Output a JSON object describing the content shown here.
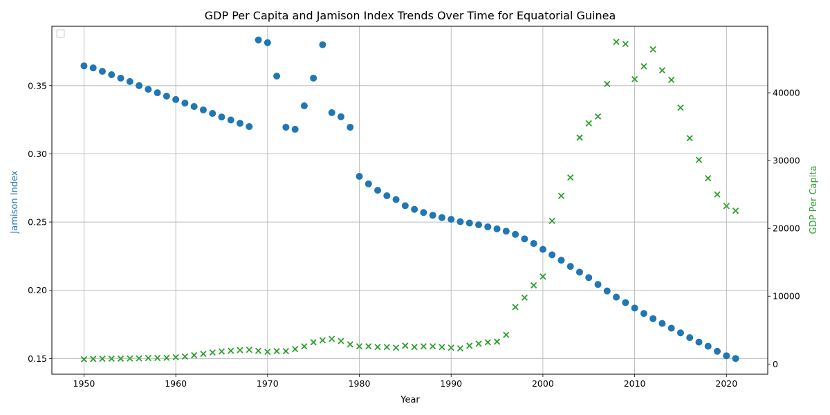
{
  "chart_data": {
    "type": "scatter",
    "title": "GDP Per Capita and Jamison Index Trends Over Time for Equatorial Guinea",
    "xlabel": "Year",
    "ylabel_left": "Jamison Index",
    "ylabel_right": "GDP Per Capita",
    "xlim": [
      1946.5,
      2024.5
    ],
    "ylim_left": [
      0.1385,
      0.3935
    ],
    "ylim_right": [
      -1500,
      49800
    ],
    "x_ticks": [
      1950,
      1960,
      1970,
      1980,
      1990,
      2000,
      2010,
      2020
    ],
    "x_tick_labels": [
      "1950",
      "1960",
      "1970",
      "1980",
      "1990",
      "2000",
      "2010",
      "2020"
    ],
    "y_ticks_left": [
      0.15,
      0.2,
      0.25,
      0.3,
      0.35
    ],
    "y_tick_labels_left": [
      "0.15",
      "0.20",
      "0.25",
      "0.30",
      "0.35"
    ],
    "y_ticks_right": [
      0,
      10000,
      20000,
      30000,
      40000
    ],
    "y_tick_labels_right": [
      "0",
      "10000",
      "20000",
      "30000",
      "40000"
    ],
    "grid": true,
    "legend_placement": "upper-left (empty)",
    "colors": {
      "jamison": "#1f77b4",
      "gdp": "#2ca02c"
    },
    "x": [
      1950,
      1951,
      1952,
      1953,
      1954,
      1955,
      1956,
      1957,
      1958,
      1959,
      1960,
      1961,
      1962,
      1963,
      1964,
      1965,
      1966,
      1967,
      1968,
      1969,
      1970,
      1971,
      1972,
      1973,
      1974,
      1975,
      1976,
      1977,
      1978,
      1979,
      1980,
      1981,
      1982,
      1983,
      1984,
      1985,
      1986,
      1987,
      1988,
      1989,
      1990,
      1991,
      1992,
      1993,
      1994,
      1995,
      1996,
      1997,
      1998,
      1999,
      2000,
      2001,
      2002,
      2003,
      2004,
      2005,
      2006,
      2007,
      2008,
      2009,
      2010,
      2011,
      2012,
      2013,
      2014,
      2015,
      2016,
      2017,
      2018,
      2019,
      2020,
      2021
    ],
    "series": [
      {
        "axis": "left",
        "marker": "circle",
        "values": [
          0.3645,
          0.363,
          0.3605,
          0.358,
          0.3555,
          0.353,
          0.35,
          0.3473,
          0.3448,
          0.3423,
          0.3398,
          0.3372,
          0.3347,
          0.3322,
          0.3296,
          0.327,
          0.3248,
          0.3224,
          0.32,
          0.3835,
          0.3815,
          0.357,
          0.3195,
          0.318,
          0.3352,
          0.3555,
          0.38,
          0.3302,
          0.3272,
          0.3195,
          0.2835,
          0.278,
          0.2733,
          0.2693,
          0.2665,
          0.262,
          0.2593,
          0.257,
          0.255,
          0.2533,
          0.252,
          0.2503,
          0.2493,
          0.248,
          0.2465,
          0.245,
          0.2433,
          0.241,
          0.2377,
          0.2343,
          0.23,
          0.226,
          0.222,
          0.2175,
          0.2133,
          0.2093,
          0.2043,
          0.1995,
          0.195,
          0.191,
          0.187,
          0.183,
          0.1792,
          0.1757,
          0.1722,
          0.1688,
          0.1653,
          0.162,
          0.159,
          0.1553,
          0.152,
          0.15
        ]
      },
      {
        "axis": "right",
        "marker": "x",
        "values": [
          700,
          750,
          780,
          790,
          800,
          820,
          850,
          880,
          900,
          920,
          1000,
          1100,
          1300,
          1500,
          1700,
          1850,
          1950,
          2050,
          2100,
          1950,
          1800,
          1900,
          1900,
          2200,
          2600,
          3200,
          3500,
          3700,
          3400,
          2900,
          2600,
          2600,
          2500,
          2500,
          2400,
          2700,
          2500,
          2600,
          2600,
          2500,
          2400,
          2300,
          2700,
          3000,
          3200,
          3300,
          4300,
          8400,
          9800,
          11600,
          12900,
          21100,
          24800,
          27500,
          33400,
          35500,
          36500,
          41300,
          47500,
          47200,
          42000,
          43900,
          46400,
          43300,
          41900,
          37800,
          33300,
          30100,
          27400,
          25000,
          23300,
          22600
        ]
      }
    ]
  }
}
